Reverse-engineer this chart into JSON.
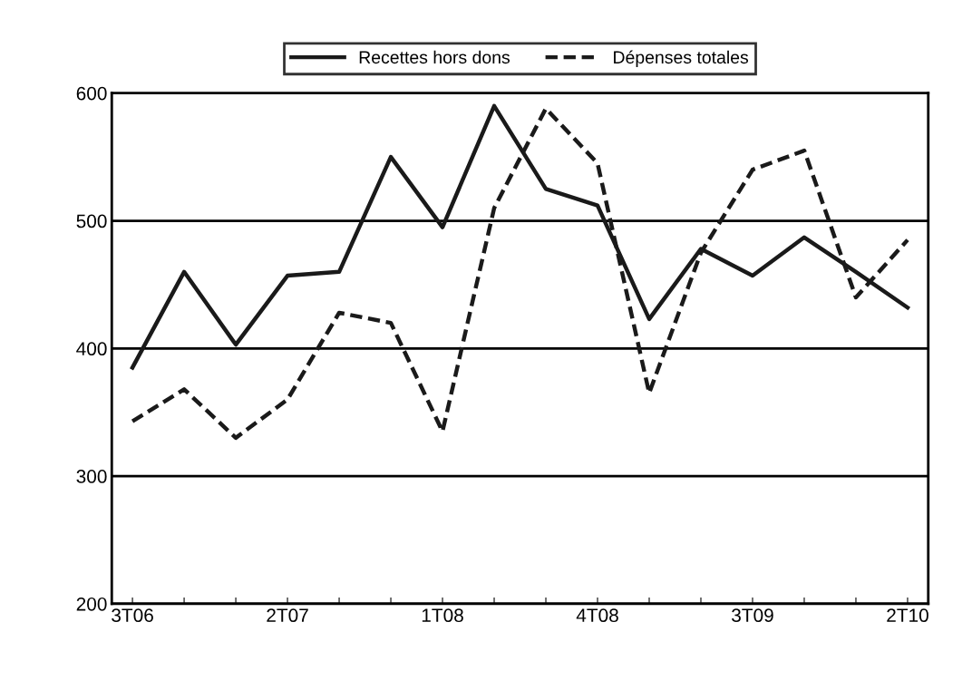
{
  "chart_data": {
    "type": "line",
    "categories": [
      "3T06",
      null,
      null,
      "2T07",
      null,
      null,
      "1T08",
      null,
      null,
      "4T08",
      null,
      null,
      "3T09",
      null,
      null,
      "2T10"
    ],
    "series": [
      {
        "name": "Recettes hors dons",
        "color": "#1a1a1a",
        "line_style": "solid",
        "values": [
          385,
          460,
          403,
          457,
          460,
          550,
          495,
          590,
          525,
          512,
          423,
          478,
          457,
          487,
          460,
          432
        ]
      },
      {
        "name": "Dépenses totales",
        "color": "#1a1a1a",
        "line_style": "dashed",
        "values": [
          343,
          368,
          330,
          360,
          428,
          420,
          335,
          510,
          588,
          545,
          365,
          475,
          540,
          555,
          440,
          485
        ]
      }
    ],
    "ylim": [
      200,
      600
    ],
    "yticks": [
      200,
      300,
      400,
      500,
      600
    ],
    "grid": "y",
    "legend": "top",
    "marker": "none"
  }
}
